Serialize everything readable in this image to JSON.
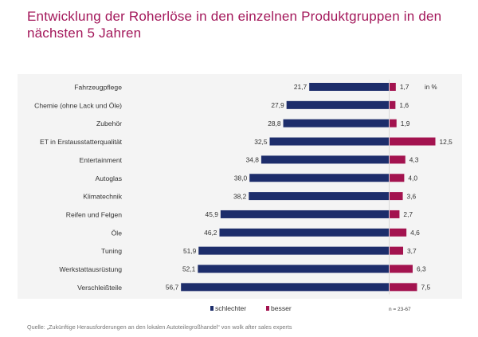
{
  "title": "Entwicklung der Roherlöse in den einzelnen Produktgruppen in den nächsten 5 Jahren",
  "unit_label": "in %",
  "sample_label": "n = 23-67",
  "source": "Quelle: „Zukünftige Herausforderungen an den lokalen Autoteilegroßhandel“ von wolk after sales experts",
  "colors": {
    "schlechter": "#1d2d6b",
    "besser": "#a3134f",
    "title": "#a3175a"
  },
  "chart_data": {
    "type": "bar",
    "orientation": "horizontal-diverging",
    "title": "Entwicklung der Roherlöse in den einzelnen Produktgruppen in den nächsten 5 Jahren",
    "unit": "in %",
    "categories": [
      "Fahrzeugpflege",
      "Chemie (ohne Lack und Öle)",
      "Zubehör",
      "ET in Erstausstatterqualität",
      "Entertainment",
      "Autoglas",
      "Klimatechnik",
      "Reifen und Felgen",
      "Öle",
      "Tuning",
      "Werkstattausrüstung",
      "Verschleißteile"
    ],
    "series": [
      {
        "name": "schlechter",
        "values": [
          21.7,
          27.9,
          28.8,
          32.5,
          34.8,
          38.0,
          38.2,
          45.9,
          46.2,
          51.9,
          52.1,
          56.7
        ],
        "labels": [
          "21,7",
          "27,9",
          "28,8",
          "32,5",
          "34,8",
          "38,0",
          "38,2",
          "45,9",
          "46,2",
          "51,9",
          "52,1",
          "56,7"
        ]
      },
      {
        "name": "besser",
        "values": [
          1.7,
          1.6,
          1.9,
          12.5,
          4.3,
          4.0,
          3.6,
          2.7,
          4.6,
          3.7,
          6.3,
          7.5
        ],
        "labels": [
          "1,7",
          "1,6",
          "1,9",
          "12,5",
          "4,3",
          "4,0",
          "3,6",
          "2,7",
          "4,6",
          "3,7",
          "6,3",
          "7,5"
        ]
      }
    ],
    "legend": [
      "schlechter",
      "besser"
    ],
    "legend_position": "bottom",
    "note": "n = 23-67"
  }
}
